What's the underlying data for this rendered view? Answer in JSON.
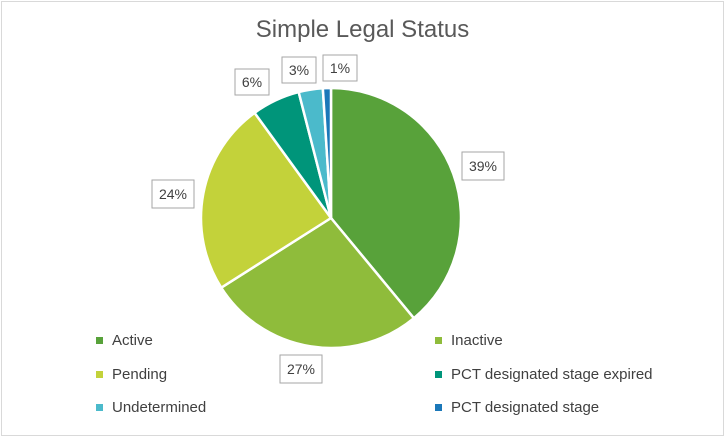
{
  "chart_data": {
    "type": "pie",
    "title": "Simple Legal Status",
    "slices": [
      {
        "name": "Active",
        "value": 39,
        "label": "39%",
        "color": "#58a23a"
      },
      {
        "name": "Inactive",
        "value": 27,
        "label": "27%",
        "color": "#8fbc3b"
      },
      {
        "name": "Pending",
        "value": 24,
        "label": "24%",
        "color": "#c3d23a"
      },
      {
        "name": "PCT designated stage expired",
        "value": 6,
        "label": "6%",
        "color": "#00957a"
      },
      {
        "name": "Undetermined",
        "value": 3,
        "label": "3%",
        "color": "#4bbacb"
      },
      {
        "name": "PCT designated stage",
        "value": 1,
        "label": "1%",
        "color": "#1b78b9"
      }
    ],
    "legend_position": "bottom",
    "start_angle": "12 o'clock, clockwise"
  }
}
